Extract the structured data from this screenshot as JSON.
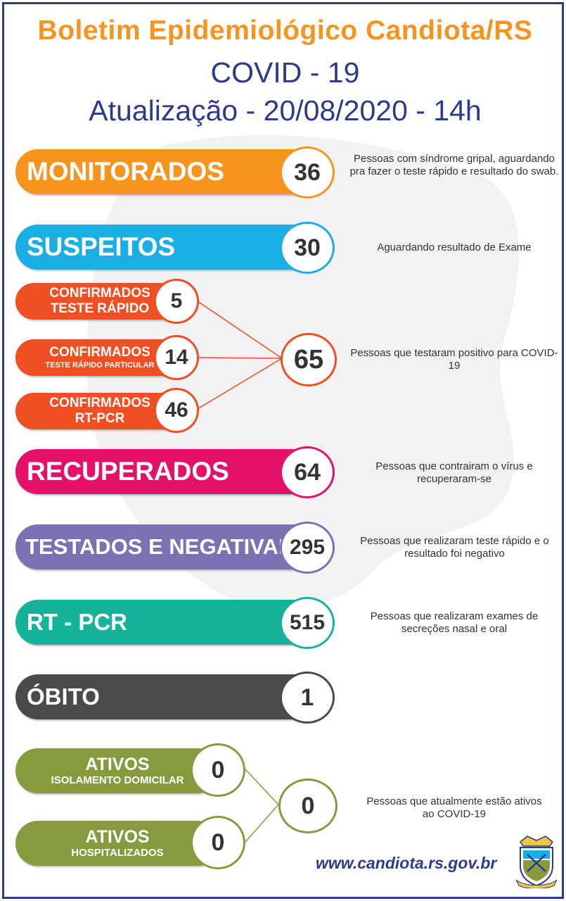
{
  "header": {
    "title": "Boletim Epidemiológico Candiota/RS",
    "subtitle": "COVID - 19",
    "update": "Atualização - 20/08/2020 - 14h"
  },
  "colors": {
    "orange": "#f7941d",
    "cyan": "#1aaee5",
    "red": "#f04e23",
    "pink": "#e4106a",
    "purple": "#7d71b3",
    "teal": "#14b39a",
    "dark": "#4a4a4a",
    "olive": "#869a3e",
    "navy": "#2e3a8c"
  },
  "stats": {
    "monitorados": {
      "label": "MONITORADOS",
      "value": "36",
      "desc": "Pessoas com síndrome gripal, aguardando pra fazer o teste rápido e resultado do swab."
    },
    "suspeitos": {
      "label": "SUSPEITOS",
      "value": "30",
      "desc": "Aguardando resultado de Exame"
    },
    "confirmados_rapido": {
      "line1": "CONFIRMADOS",
      "line2": "TESTE RÁPIDO",
      "value": "5"
    },
    "confirmados_particular": {
      "line1": "CONFIRMADOS",
      "line2": "TESTE RÁPIDO PARTICULAR",
      "value": "14"
    },
    "confirmados_rtpcr": {
      "line1": "CONFIRMADOS",
      "line2": "RT-PCR",
      "value": "46"
    },
    "confirmados_total": {
      "value": "65",
      "desc": "Pessoas que testaram positivo para COVID-19"
    },
    "recuperados": {
      "label": "RECUPERADOS",
      "value": "64",
      "desc": "Pessoas que contrairam o vírus e recuperaram-se"
    },
    "negativados": {
      "label": "TESTADOS E NEGATIVADOS",
      "value": "295",
      "desc": "Pessoas que realizaram teste rápido e o resultado foi negativo"
    },
    "rtpcr": {
      "label": "RT - PCR",
      "value": "515",
      "desc": "Pessoas que realizaram exames de secreções nasal e oral"
    },
    "obito": {
      "label": "ÓBITO",
      "value": "1"
    },
    "ativos_isolamento": {
      "line1": "ATIVOS",
      "line2": "ISOLAMENTO DOMICILAR",
      "value": "0"
    },
    "ativos_hospital": {
      "line1": "ATIVOS",
      "line2": "HOSPITALIZADOS",
      "value": "0"
    },
    "ativos_total": {
      "value": "0",
      "desc": "Pessoas que atualmente estão ativos ao COVID-19"
    }
  },
  "footer": {
    "url": "www.candiota.rs.gov.br"
  },
  "icons": {
    "crest": "municipal-crest-icon"
  }
}
